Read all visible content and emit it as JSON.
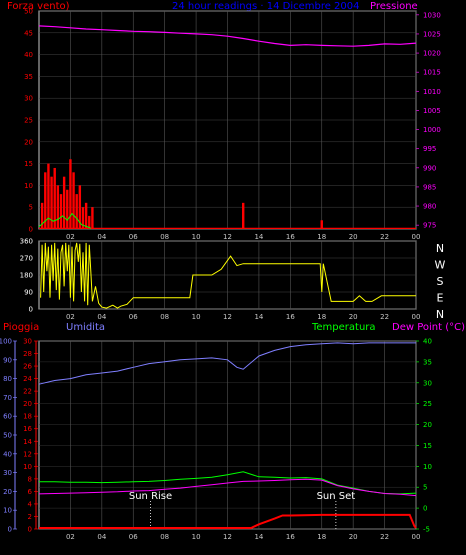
{
  "colors": {
    "background": "#000000",
    "frame": "#c8c8c8",
    "wind": "#ff0000",
    "wind_gust": "#00ff00",
    "pressure": "#ff00ff",
    "direction": "#ffff00",
    "humidity": "#7f7fff",
    "temperature": "#00ff00",
    "dew_point": "#ff00ff",
    "rain": "#ff0000",
    "title": "#0000ff"
  },
  "chart_data": [
    {
      "type": "line",
      "title": "24 hour readings · 14 Dicembre 2004",
      "left_label": "Forza vento)",
      "right_label": "Pressione",
      "x_ticks": [
        "02",
        "04",
        "06",
        "08",
        "10",
        "12",
        "14",
        "16",
        "18",
        "20",
        "22",
        "00"
      ],
      "xlim": [
        0,
        24
      ],
      "left_ticks": [
        "0",
        "5",
        "10",
        "15",
        "20",
        "25",
        "30",
        "35",
        "40",
        "45",
        "50"
      ],
      "left_ylim": [
        0,
        50
      ],
      "right_ticks": [
        "975",
        "980",
        "985",
        "990",
        "995",
        "1000",
        "1005",
        "1010",
        "1015",
        "1020",
        "1025",
        "1030"
      ],
      "right_ylim": [
        974,
        1031
      ],
      "series": [
        {
          "name": "Pressione",
          "axis": "right",
          "x": [
            0,
            1,
            2,
            3,
            4,
            5,
            6,
            7,
            8,
            9,
            10,
            11,
            12,
            13,
            14,
            15,
            16,
            17,
            18,
            19,
            20,
            21,
            22,
            23,
            24
          ],
          "y": [
            1027.1,
            1026.9,
            1026.6,
            1026.3,
            1026.1,
            1025.9,
            1025.7,
            1025.6,
            1025.4,
            1025.2,
            1025.0,
            1024.8,
            1024.4,
            1023.8,
            1023.1,
            1022.5,
            1022.0,
            1022.2,
            1022.0,
            1021.9,
            1021.8,
            1022.0,
            1022.4,
            1022.3,
            1022.6
          ]
        },
        {
          "name": "wind",
          "axis": "left",
          "kind": "bars",
          "x": [
            0.2,
            0.4,
            0.6,
            0.8,
            1.0,
            1.2,
            1.4,
            1.6,
            1.8,
            2.0,
            2.2,
            2.4,
            2.6,
            2.8,
            3.0,
            3.2,
            3.4,
            13.0,
            18.0
          ],
          "y": [
            6,
            13,
            15,
            12,
            14,
            10,
            8,
            12,
            9,
            16,
            13,
            8,
            10,
            5,
            6,
            3,
            5,
            6,
            2
          ]
        },
        {
          "name": "gust",
          "axis": "left",
          "x": [
            0,
            0.3,
            0.6,
            0.9,
            1.2,
            1.5,
            1.8,
            2.1,
            2.4,
            2.7,
            3.0,
            3.3
          ],
          "y": [
            0.5,
            1.5,
            2.5,
            1.8,
            2.2,
            3.0,
            2.0,
            3.5,
            2.4,
            1.0,
            0.6,
            0.2
          ]
        }
      ]
    },
    {
      "type": "line",
      "x_ticks": [
        "02",
        "04",
        "06",
        "08",
        "10",
        "12",
        "14",
        "16",
        "18",
        "20",
        "22",
        "00"
      ],
      "xlim": [
        0,
        24
      ],
      "left_ticks": [
        "0",
        "90",
        "180",
        "270",
        "360"
      ],
      "ylim": [
        0,
        360
      ],
      "direction_labels": [
        "N",
        "W",
        "S",
        "E",
        "N"
      ],
      "series": [
        {
          "name": "direction",
          "x": [
            0.1,
            0.2,
            0.3,
            0.4,
            0.5,
            0.6,
            0.7,
            0.8,
            0.9,
            1.0,
            1.1,
            1.2,
            1.3,
            1.4,
            1.5,
            1.6,
            1.7,
            1.8,
            1.9,
            2.0,
            2.1,
            2.2,
            2.3,
            2.4,
            2.5,
            2.6,
            2.7,
            2.8,
            2.9,
            3.0,
            3.1,
            3.2,
            3.3,
            3.4,
            3.6,
            3.8,
            4.0,
            4.3,
            4.7,
            5.0,
            5.2,
            5.6,
            6.0,
            9.0,
            9.6,
            9.8,
            10.2,
            11.0,
            11.6,
            12.2,
            12.6,
            13.0,
            14.0,
            16.0,
            17.9,
            18.0,
            18.1,
            18.6,
            19.0,
            20.0,
            20.4,
            20.8,
            21.2,
            21.8,
            22.4,
            23.0,
            24.0
          ],
          "y": [
            60,
            340,
            90,
            350,
            200,
            330,
            60,
            340,
            150,
            350,
            100,
            320,
            50,
            300,
            340,
            120,
            350,
            200,
            340,
            60,
            330,
            40,
            310,
            350,
            250,
            345,
            90,
            300,
            40,
            350,
            20,
            340,
            200,
            40,
            120,
            30,
            10,
            5,
            20,
            5,
            15,
            25,
            60,
            60,
            60,
            180,
            180,
            180,
            210,
            280,
            230,
            240,
            240,
            240,
            240,
            90,
            240,
            40,
            40,
            40,
            70,
            40,
            40,
            70,
            70,
            70,
            70
          ]
        }
      ]
    },
    {
      "type": "line",
      "left_labels": [
        "Pioggia",
        "Umidita"
      ],
      "right_labels": [
        "Temperatura",
        "Dew Point (°C)"
      ],
      "x_ticks": [
        "02",
        "04",
        "06",
        "08",
        "10",
        "12",
        "14",
        "16",
        "18",
        "20",
        "22",
        "00"
      ],
      "xlim": [
        0,
        24
      ],
      "humidity_ticks": [
        "0",
        "10",
        "20",
        "30",
        "40",
        "50",
        "60",
        "70",
        "80",
        "90",
        "100"
      ],
      "humidity_ylim": [
        0,
        100
      ],
      "rain_ticks": [
        "0",
        "2",
        "4",
        "6",
        "8",
        "10",
        "12",
        "14",
        "16",
        "18",
        "20",
        "22",
        "24",
        "26",
        "28",
        "30"
      ],
      "rain_ylim": [
        0,
        30
      ],
      "temp_ticks": [
        "-5",
        "0",
        "5",
        "10",
        "15",
        "20",
        "25",
        "30",
        "35",
        "40"
      ],
      "temp_ylim": [
        -5,
        40
      ],
      "annotations": [
        {
          "label": "Sun Rise",
          "x": 7.1
        },
        {
          "label": "Sun Set",
          "x": 18.9
        }
      ],
      "series": [
        {
          "name": "Umidita",
          "axis": "humidity",
          "x": [
            0,
            1,
            2,
            3,
            4,
            5,
            6,
            7,
            8,
            9,
            10,
            11,
            12,
            12.6,
            13,
            14,
            15,
            16,
            17,
            18,
            19,
            20,
            21,
            22,
            23,
            24
          ],
          "y": [
            77,
            79,
            80,
            82,
            83,
            84,
            86,
            88,
            89,
            90,
            90.5,
            91,
            90,
            86,
            85,
            92,
            95,
            97,
            98,
            98.5,
            99,
            98.5,
            99,
            99,
            99,
            99
          ]
        },
        {
          "name": "Temperatura",
          "axis": "temp",
          "x": [
            0,
            1,
            2,
            3,
            4,
            5,
            6,
            7,
            8,
            9,
            10,
            11,
            12,
            13,
            14,
            15,
            16,
            17,
            18,
            19,
            20,
            21,
            22,
            23,
            24
          ],
          "y": [
            6.3,
            6.3,
            6.2,
            6.2,
            6.1,
            6.2,
            6.3,
            6.4,
            6.6,
            6.9,
            7.1,
            7.4,
            8.0,
            8.7,
            7.5,
            7.4,
            7.2,
            7.3,
            7.0,
            5.5,
            4.8,
            4.0,
            3.5,
            3.4,
            3.6
          ]
        },
        {
          "name": "Dew Point",
          "axis": "temp",
          "x": [
            0,
            1,
            2,
            3,
            4,
            5,
            6,
            7,
            8,
            9,
            10,
            11,
            12,
            13,
            14,
            15,
            16,
            17,
            18,
            19,
            20,
            21,
            22,
            23,
            24
          ],
          "y": [
            3.4,
            3.5,
            3.6,
            3.7,
            3.8,
            3.9,
            4.1,
            4.2,
            4.5,
            4.8,
            5.2,
            5.6,
            6.0,
            6.4,
            6.5,
            6.6,
            6.8,
            6.9,
            6.7,
            5.4,
            4.6,
            4.0,
            3.5,
            3.3,
            3.0
          ]
        },
        {
          "name": "Pioggia",
          "axis": "rain",
          "x": [
            0,
            13.5,
            14.0,
            15.0,
            15.5,
            16.0,
            18.0,
            20.0,
            22.0,
            23.6,
            23.9,
            24.0
          ],
          "y": [
            0,
            0,
            0.6,
            1.5,
            2.0,
            2.0,
            2.1,
            2.1,
            2.1,
            2.1,
            0.3,
            0
          ]
        }
      ]
    }
  ]
}
